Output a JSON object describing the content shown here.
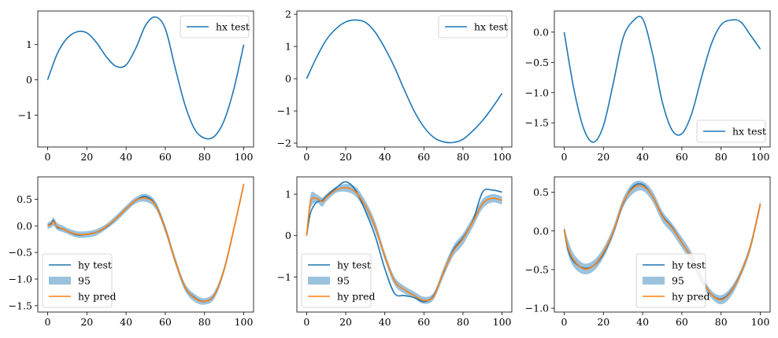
{
  "chart_data": [
    {
      "type": "line",
      "ylim": [
        -1.9,
        1.95
      ],
      "xlim": [
        -5,
        105
      ],
      "xticks": [
        0,
        20,
        40,
        60,
        80,
        100
      ],
      "yticks": [
        -1,
        0,
        1
      ],
      "ytick_labels": [
        "−1",
        "0",
        "1"
      ],
      "legend_loc": "upper right",
      "series": [
        {
          "name": "hx test",
          "role": "line",
          "color": "#1f77b4",
          "x": [
            0,
            5,
            10,
            15,
            20,
            25,
            30,
            35,
            40,
            45,
            50,
            55,
            60,
            65,
            70,
            75,
            80,
            85,
            90,
            95,
            100
          ],
          "y": [
            0,
            0.75,
            1.18,
            1.36,
            1.33,
            1.05,
            0.65,
            0.38,
            0.42,
            0.9,
            1.55,
            1.78,
            1.45,
            0.35,
            -0.7,
            -1.4,
            -1.65,
            -1.6,
            -1.15,
            -0.25,
            1.0
          ]
        }
      ]
    },
    {
      "type": "line",
      "ylim": [
        -2.12,
        2.1
      ],
      "xlim": [
        -5,
        105
      ],
      "xticks": [
        0,
        20,
        40,
        60,
        80,
        100
      ],
      "yticks": [
        -2,
        -1,
        0,
        1,
        2
      ],
      "ytick_labels": [
        "−2",
        "−1",
        "0",
        "1",
        "2"
      ],
      "legend_loc": "upper right",
      "series": [
        {
          "name": "hx test",
          "role": "line",
          "color": "#1f77b4",
          "x": [
            0,
            5,
            10,
            15,
            20,
            25,
            30,
            35,
            40,
            45,
            50,
            55,
            60,
            65,
            70,
            75,
            80,
            85,
            90,
            95,
            100
          ],
          "y": [
            0,
            0.65,
            1.2,
            1.55,
            1.76,
            1.82,
            1.75,
            1.45,
            0.95,
            0.35,
            -0.35,
            -1.0,
            -1.5,
            -1.82,
            -1.96,
            -1.98,
            -1.88,
            -1.62,
            -1.3,
            -0.9,
            -0.45
          ]
        }
      ]
    },
    {
      "type": "line",
      "ylim": [
        -1.9,
        0.35
      ],
      "xlim": [
        -5,
        105
      ],
      "xticks": [
        0,
        20,
        40,
        60,
        80,
        100
      ],
      "yticks": [
        -1.5,
        -1.0,
        -0.5,
        0.0
      ],
      "ytick_labels": [
        "−1.5",
        "−1.0",
        "−0.5",
        "0.0"
      ],
      "legend_loc": "lower right",
      "series": [
        {
          "name": "hx test",
          "role": "line",
          "color": "#1f77b4",
          "x": [
            0,
            5,
            10,
            15,
            20,
            25,
            30,
            35,
            40,
            45,
            50,
            55,
            60,
            65,
            70,
            75,
            80,
            85,
            90,
            95,
            100
          ],
          "y": [
            0,
            -0.95,
            -1.6,
            -1.82,
            -1.55,
            -0.85,
            -0.1,
            0.18,
            0.22,
            -0.35,
            -1.15,
            -1.62,
            -1.68,
            -1.35,
            -0.75,
            -0.2,
            0.12,
            0.2,
            0.17,
            -0.05,
            -0.28
          ]
        }
      ]
    },
    {
      "type": "line",
      "ylim": [
        -1.62,
        0.92
      ],
      "xlim": [
        -5,
        105
      ],
      "xticks": [
        0,
        20,
        40,
        60,
        80,
        100
      ],
      "yticks": [
        -1.5,
        -1.0,
        -0.5,
        0.0,
        0.5
      ],
      "ytick_labels": [
        "−1.5",
        "−1.0",
        "−0.5",
        "0.0",
        "0.5"
      ],
      "legend_loc": "lower left",
      "series": [
        {
          "name": "hy test",
          "role": "line",
          "color": "#1f77b4",
          "x": [
            0,
            2,
            3,
            5,
            8,
            10,
            15,
            20,
            25,
            30,
            35,
            40,
            45,
            50,
            55,
            60,
            65,
            70,
            75,
            80,
            85,
            90,
            95,
            100
          ],
          "y": [
            0,
            0.05,
            0.1,
            -0.03,
            -0.06,
            -0.1,
            -0.17,
            -0.16,
            -0.12,
            -0.02,
            0.14,
            0.32,
            0.48,
            0.55,
            0.4,
            -0.05,
            -0.65,
            -1.15,
            -1.35,
            -1.42,
            -1.3,
            -0.82,
            -0.05,
            0.78
          ]
        },
        {
          "name": "95",
          "role": "band",
          "color": "#1f77b4",
          "opacity": 0.45,
          "x": [
            0,
            2,
            3,
            5,
            8,
            10,
            15,
            20,
            25,
            30,
            35,
            40,
            45,
            50,
            55,
            60,
            65,
            70,
            75,
            80,
            85,
            90,
            95,
            100
          ],
          "lower": [
            -0.06,
            -0.03,
            0.0,
            -0.08,
            -0.12,
            -0.15,
            -0.22,
            -0.22,
            -0.18,
            -0.06,
            0.08,
            0.26,
            0.42,
            0.45,
            0.32,
            -0.13,
            -0.72,
            -1.22,
            -1.43,
            -1.48,
            -1.37,
            -0.88,
            -0.1,
            0.75
          ],
          "upper": [
            0.06,
            0.1,
            0.16,
            0.05,
            0.0,
            -0.04,
            -0.1,
            -0.1,
            -0.06,
            0.04,
            0.2,
            0.38,
            0.54,
            0.6,
            0.46,
            0.01,
            -0.58,
            -1.08,
            -1.28,
            -1.36,
            -1.24,
            -0.76,
            0.0,
            0.82
          ]
        },
        {
          "name": "hy pred",
          "role": "line",
          "color": "#ff7f0e",
          "x": [
            0,
            2,
            3,
            5,
            8,
            10,
            15,
            20,
            25,
            30,
            35,
            40,
            45,
            50,
            55,
            60,
            65,
            70,
            75,
            80,
            85,
            90,
            95,
            100
          ],
          "y": [
            0,
            0.03,
            0.08,
            -0.02,
            -0.06,
            -0.1,
            -0.16,
            -0.16,
            -0.12,
            -0.01,
            0.14,
            0.32,
            0.48,
            0.52,
            0.39,
            -0.06,
            -0.65,
            -1.15,
            -1.36,
            -1.42,
            -1.3,
            -0.82,
            -0.05,
            0.78
          ]
        }
      ]
    },
    {
      "type": "line",
      "ylim": [
        -1.85,
        1.42
      ],
      "xlim": [
        -5,
        105
      ],
      "xticks": [
        0,
        20,
        40,
        60,
        80,
        100
      ],
      "yticks": [
        -1,
        0,
        1
      ],
      "ytick_labels": [
        "−1",
        "0",
        "1"
      ],
      "legend_loc": "lower left",
      "series": [
        {
          "name": "hy test",
          "role": "line",
          "color": "#1f77b4",
          "x": [
            0,
            2,
            5,
            8,
            10,
            15,
            20,
            25,
            30,
            35,
            40,
            45,
            50,
            55,
            60,
            65,
            70,
            75,
            80,
            85,
            90,
            95,
            100
          ],
          "y": [
            0,
            0.55,
            0.8,
            0.85,
            0.95,
            1.15,
            1.3,
            1.1,
            0.6,
            0.0,
            -0.8,
            -1.4,
            -1.45,
            -1.5,
            -1.6,
            -1.45,
            -0.9,
            -0.35,
            -0.05,
            0.35,
            1.05,
            1.1,
            1.05
          ]
        },
        {
          "name": "95",
          "role": "band",
          "color": "#1f77b4",
          "opacity": 0.45,
          "x": [
            0,
            2,
            5,
            8,
            10,
            15,
            20,
            25,
            30,
            35,
            40,
            45,
            50,
            55,
            60,
            65,
            70,
            75,
            80,
            85,
            90,
            95,
            100
          ],
          "lower": [
            -0.03,
            0.65,
            0.8,
            0.7,
            0.82,
            1.03,
            1.06,
            0.95,
            0.6,
            0.1,
            -0.6,
            -1.2,
            -1.4,
            -1.52,
            -1.65,
            -1.55,
            -1.0,
            -0.5,
            -0.22,
            0.2,
            0.65,
            0.8,
            0.75
          ],
          "upper": [
            0.03,
            0.98,
            1.0,
            0.92,
            1.0,
            1.18,
            1.25,
            1.18,
            0.85,
            0.35,
            -0.4,
            -1.0,
            -1.22,
            -1.35,
            -1.48,
            -1.38,
            -0.78,
            -0.25,
            0.05,
            0.45,
            0.88,
            1.0,
            0.95
          ]
        },
        {
          "name": "hy pred",
          "role": "line",
          "color": "#ff7f0e",
          "x": [
            0,
            2,
            5,
            8,
            10,
            15,
            20,
            25,
            30,
            35,
            40,
            45,
            50,
            55,
            60,
            65,
            70,
            75,
            80,
            85,
            90,
            95,
            100
          ],
          "y": [
            0,
            0.82,
            0.9,
            0.82,
            0.92,
            1.1,
            1.16,
            1.06,
            0.72,
            0.22,
            -0.5,
            -1.1,
            -1.31,
            -1.45,
            -1.57,
            -1.47,
            -0.89,
            -0.38,
            -0.08,
            0.33,
            0.77,
            0.9,
            0.85
          ]
        }
      ]
    },
    {
      "type": "line",
      "ylim": [
        -1.05,
        0.7
      ],
      "xlim": [
        -5,
        105
      ],
      "xticks": [
        0,
        20,
        40,
        60,
        80,
        100
      ],
      "yticks": [
        -1.0,
        -0.5,
        0.0,
        0.5
      ],
      "ytick_labels": [
        "−1.0",
        "−0.5",
        "0.0",
        "0.5"
      ],
      "legend_loc": "lower center",
      "series": [
        {
          "name": "hy test",
          "role": "line",
          "color": "#1f77b4",
          "x": [
            0,
            2,
            5,
            10,
            15,
            20,
            25,
            30,
            35,
            40,
            45,
            50,
            55,
            60,
            65,
            70,
            75,
            80,
            85,
            90,
            95,
            100
          ],
          "y": [
            0.02,
            -0.25,
            -0.4,
            -0.48,
            -0.45,
            -0.3,
            -0.02,
            0.35,
            0.57,
            0.6,
            0.45,
            0.2,
            0.05,
            -0.15,
            -0.35,
            -0.62,
            -0.82,
            -0.88,
            -0.78,
            -0.55,
            -0.2,
            0.35
          ]
        },
        {
          "name": "95",
          "role": "band",
          "color": "#1f77b4",
          "opacity": 0.45,
          "x": [
            0,
            2,
            5,
            10,
            15,
            20,
            25,
            30,
            35,
            40,
            45,
            50,
            55,
            60,
            65,
            70,
            75,
            80,
            85,
            90,
            95,
            100
          ],
          "lower": [
            -0.04,
            -0.3,
            -0.47,
            -0.56,
            -0.52,
            -0.35,
            -0.07,
            0.3,
            0.48,
            0.52,
            0.38,
            0.12,
            -0.03,
            -0.22,
            -0.42,
            -0.68,
            -0.87,
            -0.95,
            -0.85,
            -0.6,
            -0.25,
            0.3
          ],
          "upper": [
            0.07,
            -0.12,
            -0.3,
            -0.42,
            -0.38,
            -0.22,
            0.05,
            0.42,
            0.62,
            0.64,
            0.52,
            0.26,
            0.1,
            -0.08,
            -0.28,
            -0.56,
            -0.77,
            -0.83,
            -0.73,
            -0.5,
            -0.15,
            0.4
          ]
        },
        {
          "name": "hy pred",
          "role": "line",
          "color": "#ff7f0e",
          "x": [
            0,
            2,
            5,
            10,
            15,
            20,
            25,
            30,
            35,
            40,
            45,
            50,
            55,
            60,
            65,
            70,
            75,
            80,
            85,
            90,
            95,
            100
          ],
          "y": [
            0.02,
            -0.22,
            -0.38,
            -0.49,
            -0.45,
            -0.28,
            -0.01,
            0.36,
            0.55,
            0.58,
            0.45,
            0.19,
            0.04,
            -0.15,
            -0.35,
            -0.62,
            -0.82,
            -0.89,
            -0.79,
            -0.55,
            -0.2,
            0.35
          ]
        }
      ]
    }
  ]
}
